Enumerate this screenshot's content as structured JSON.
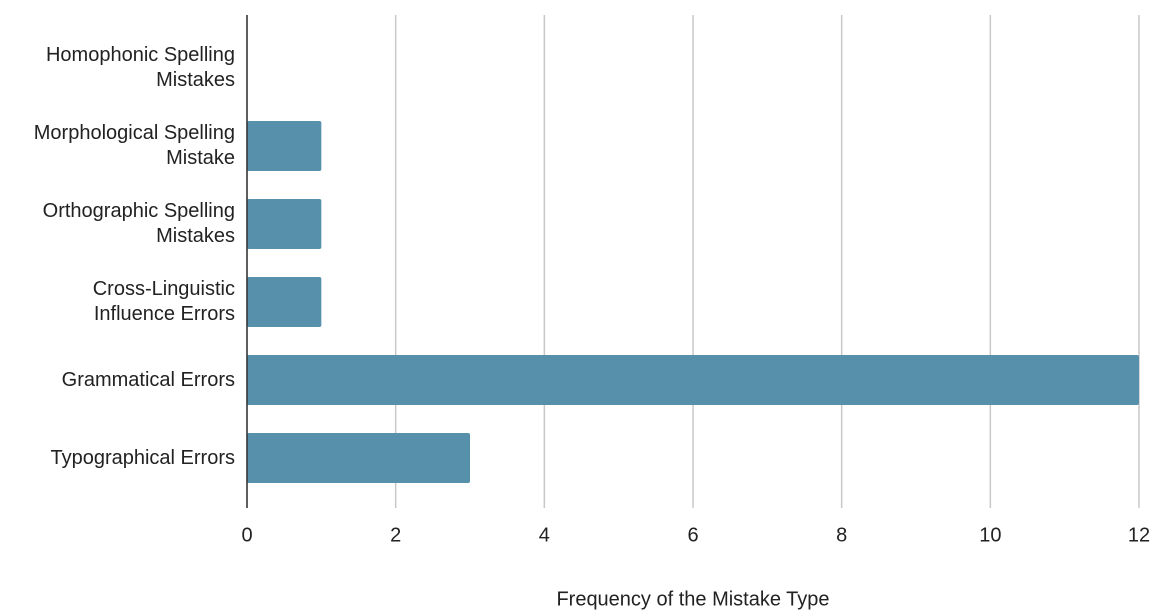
{
  "chart_data": {
    "type": "hbar",
    "categories": [
      "Homophonic Spelling Mistakes",
      "Morphological Spelling Mistake",
      "Orthographic Spelling Mistakes",
      "Cross-Linguistic Influence Errors",
      "Grammatical Errors",
      "Typographical Errors"
    ],
    "values": [
      0,
      1,
      1,
      1,
      12,
      3
    ],
    "color": "#5790ab",
    "x_label": "Frequency of the Mistake Type",
    "xlim": [
      0,
      12
    ],
    "xticks": [
      0,
      2,
      4,
      6,
      8,
      10,
      12
    ],
    "grid": true
  }
}
